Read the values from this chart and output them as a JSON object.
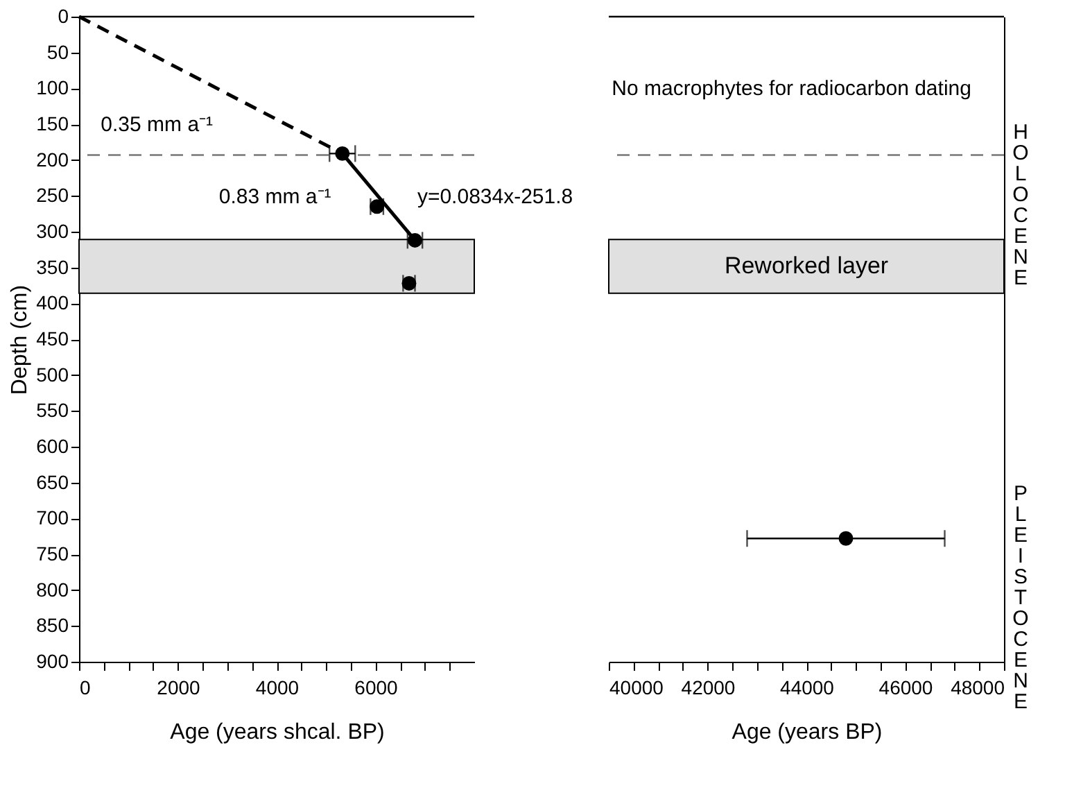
{
  "chart_data": [
    {
      "type": "scatter",
      "xlabel": "Age (years shcal. BP)",
      "ylabel": "Depth (cm)",
      "xlim": [
        0,
        8000
      ],
      "ylim": [
        900,
        0
      ],
      "xticks": [
        0,
        {
          "value": 500,
          "label": null
        },
        {
          "value": 1000,
          "label": null
        },
        {
          "value": 1500,
          "label": null
        },
        2000,
        {
          "value": 2500,
          "label": null
        },
        {
          "value": 3000,
          "label": null
        },
        {
          "value": 3500,
          "label": null
        },
        4000,
        {
          "value": 4500,
          "label": null
        },
        {
          "value": 5000,
          "label": null
        },
        {
          "value": 5500,
          "label": null
        },
        6000,
        {
          "value": 6500,
          "label": null
        },
        {
          "value": 7000,
          "label": null
        },
        {
          "value": 7500,
          "label": null
        }
      ],
      "yticks": [
        0,
        50,
        100,
        150,
        200,
        250,
        300,
        350,
        400,
        450,
        500,
        550,
        600,
        650,
        700,
        750,
        800,
        850,
        900
      ],
      "series": [
        {
          "color": "#000000",
          "marker": "circle",
          "x": [
            5330,
            6030,
            6800,
            6680
          ],
          "values": [
            191,
            265,
            312,
            372
          ],
          "xerrors": [
            260,
            130,
            150,
            120
          ]
        },
        {
          "type": "line",
          "color": "#000000",
          "marker": "none",
          "line_style": "dashed",
          "x": [
            0,
            5330
          ],
          "values": [
            0,
            191
          ]
        },
        {
          "type": "line",
          "color": "#000000",
          "marker": "none",
          "line_style": "solid",
          "x": [
            5330,
            6800
          ],
          "values": [
            191,
            312
          ]
        }
      ],
      "ref_lines": [
        {
          "axis": "y",
          "value": 193,
          "color": "#777777",
          "line_style": "dashed"
        }
      ],
      "bands": [
        {
          "axis": "y",
          "from": 311,
          "to": 386,
          "color": "#e0e0e0"
        }
      ],
      "annotations": [
        "0.35 mm a⁻¹",
        "0.83 mm a⁻¹",
        "y=0.0834x-251.8"
      ]
    },
    {
      "type": "scatter",
      "xlabel": "Age (years BP)",
      "xlim": [
        40000,
        48000
      ],
      "ylim": [
        900,
        0
      ],
      "tick_labels": "x",
      "xticks": [
        40000,
        {
          "value": 40500,
          "label": null
        },
        {
          "value": 41000,
          "label": null
        },
        {
          "value": 41500,
          "label": null
        },
        42000,
        {
          "value": 42500,
          "label": null
        },
        {
          "value": 43000,
          "label": null
        },
        {
          "value": 43500,
          "label": null
        },
        44000,
        {
          "value": 44500,
          "label": null
        },
        {
          "value": 45000,
          "label": null
        },
        {
          "value": 45500,
          "label": null
        },
        46000,
        {
          "value": 46500,
          "label": null
        },
        {
          "value": 47000,
          "label": null
        },
        {
          "value": 47500,
          "label": null
        },
        48000
      ],
      "yticks": [
        0,
        50,
        100,
        150,
        200,
        250,
        300,
        350,
        400,
        450,
        500,
        550,
        600,
        650,
        700,
        750,
        800,
        850,
        900
      ],
      "series": [
        {
          "color": "#000000",
          "marker": "circle",
          "x": [
            44800
          ],
          "values": [
            728
          ],
          "xerrors": [
            2000
          ]
        }
      ],
      "ref_lines": [
        {
          "axis": "y",
          "value": 193,
          "color": "#777777",
          "line_style": "dashed"
        }
      ],
      "bands": [
        {
          "axis": "y",
          "from": 311,
          "to": 386,
          "color": "#e0e0e0",
          "label": "Reworked layer"
        }
      ],
      "annotations": [
        "No macrophytes for radiocarbon dating",
        "HOLOCENE",
        "PLEISTOCENE"
      ]
    }
  ]
}
